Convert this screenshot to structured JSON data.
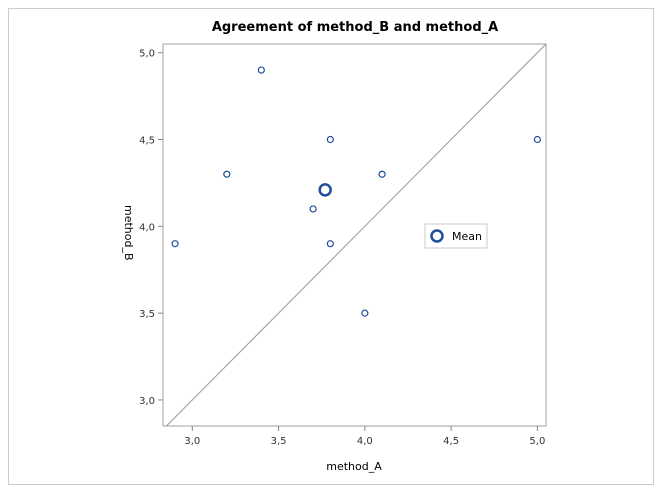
{
  "chart_data": {
    "type": "scatter",
    "title": "Agreement of method_B and method_A",
    "xlabel": "method_A",
    "ylabel": "method_B",
    "xlim": [
      2.83,
      5.05
    ],
    "ylim": [
      2.85,
      5.05
    ],
    "xticks": [
      "3,0",
      "3,5",
      "4,0",
      "4,5",
      "5,0"
    ],
    "yticks": [
      "3,0",
      "3,5",
      "4,0",
      "4,5",
      "5,0"
    ],
    "points": [
      {
        "x": 2.9,
        "y": 3.9
      },
      {
        "x": 3.2,
        "y": 4.3
      },
      {
        "x": 3.4,
        "y": 4.9
      },
      {
        "x": 3.7,
        "y": 4.1
      },
      {
        "x": 3.8,
        "y": 4.5
      },
      {
        "x": 3.8,
        "y": 3.9
      },
      {
        "x": 4.0,
        "y": 3.5
      },
      {
        "x": 4.1,
        "y": 4.3
      },
      {
        "x": 5.0,
        "y": 4.5
      }
    ],
    "mean": {
      "x": 3.77,
      "y": 4.21
    },
    "legend": {
      "label": "Mean",
      "placement": "right-center"
    },
    "identity_line": true,
    "grid": false,
    "colors": {
      "marker": "#1f4e9c",
      "line": "#999999",
      "frame": "#a0a0a0"
    }
  }
}
